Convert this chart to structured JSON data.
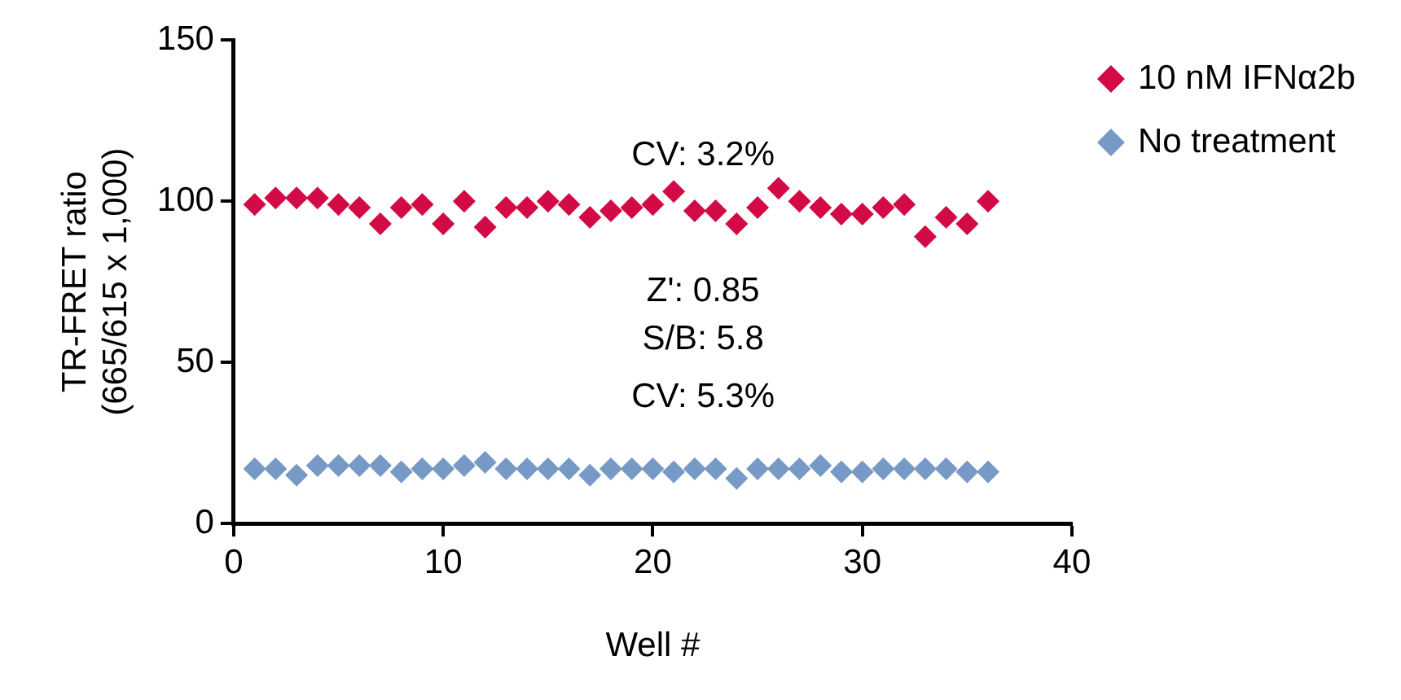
{
  "chart_data": {
    "type": "scatter",
    "xlabel": "Well #",
    "ylabel": "TR-FRET ratio\n(665/615 x 1,000)",
    "x": [
      1,
      2,
      3,
      4,
      5,
      6,
      7,
      8,
      9,
      10,
      11,
      12,
      13,
      14,
      15,
      16,
      17,
      18,
      19,
      20,
      21,
      22,
      23,
      24,
      25,
      26,
      27,
      28,
      29,
      30,
      31,
      32,
      33,
      34,
      35,
      36
    ],
    "series": [
      {
        "name": "10 nM IFNα2b",
        "color": "#d20a46",
        "values": [
          99,
          101,
          101,
          101,
          99,
          98,
          93,
          98,
          99,
          93,
          100,
          92,
          98,
          98,
          100,
          99,
          95,
          97,
          98,
          99,
          103,
          97,
          97,
          93,
          98,
          104,
          100,
          98,
          96,
          96,
          98,
          99,
          89,
          95,
          93,
          100
        ]
      },
      {
        "name": "No treatment",
        "color": "#7799c6",
        "values": [
          17,
          17,
          15,
          18,
          18,
          18,
          18,
          16,
          17,
          17,
          18,
          19,
          17,
          17,
          17,
          17,
          15,
          17,
          17,
          17,
          16,
          17,
          17,
          14,
          17,
          17,
          17,
          18,
          16,
          16,
          17,
          17,
          17,
          17,
          16,
          16
        ]
      }
    ],
    "annotations": [
      "CV: 3.2%",
      "Z': 0.85",
      "S/B: 5.8",
      "CV: 5.3%"
    ],
    "xlim": [
      0,
      40
    ],
    "xticks": [
      0,
      10,
      20,
      30,
      40
    ],
    "ylim": [
      0,
      150
    ],
    "yticks": [
      0,
      50,
      100,
      150
    ],
    "grid": false,
    "legend": "top right",
    "marker": "diamond"
  }
}
